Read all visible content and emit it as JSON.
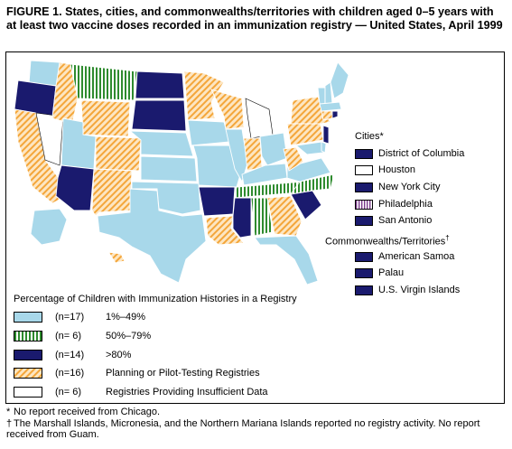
{
  "figure": {
    "title": "FIGURE 1. States, cities, and commonwealths/territories with children aged 0–5 years with at least two vaccine doses recorded in an immunization registry — United States, April 1999"
  },
  "colors": {
    "range_1_49": "#a8d8ea",
    "range_50_79": "#2e8b2e",
    "over_80": "#1a1a6e",
    "planning": "#f4a63a",
    "insufficient": "#ffffff"
  },
  "cities": {
    "heading": "Cities*",
    "items": [
      {
        "label": "District of Columbia",
        "category": "over_80"
      },
      {
        "label": "Houston",
        "category": "insufficient"
      },
      {
        "label": "New York City",
        "category": "over_80"
      },
      {
        "label": "Philadelphia",
        "category": "range_50_79"
      },
      {
        "label": "San Antonio",
        "category": "over_80"
      }
    ]
  },
  "territories": {
    "heading": "Commonwealths/Territories",
    "heading_mark": "†",
    "items": [
      {
        "label": "American Samoa",
        "category": "over_80"
      },
      {
        "label": "Palau",
        "category": "over_80"
      },
      {
        "label": "U.S. Virgin Islands",
        "category": "over_80"
      }
    ]
  },
  "legend": {
    "heading": "Percentage of Children with Immunization Histories in a Registry",
    "items": [
      {
        "count": "(n=17)",
        "label": "1%–49%",
        "category": "range_1_49"
      },
      {
        "count": "(n=  6)",
        "label": "50%–79%",
        "category": "range_50_79"
      },
      {
        "count": "(n=14)",
        "label": ">80%",
        "category": "over_80"
      },
      {
        "count": "(n=16)",
        "label": "Planning or Pilot-Testing Registries",
        "category": "planning"
      },
      {
        "count": "(n=  6)",
        "label": "Registries Providing Insufficient Data",
        "category": "insufficient"
      }
    ]
  },
  "footnotes": [
    {
      "mark": "*",
      "text": "No report received from Chicago."
    },
    {
      "mark": "†",
      "text": "The Marshall Islands, Micronesia, and the Northern Mariana Islands reported no registry activity. No report received from Guam."
    }
  ]
}
